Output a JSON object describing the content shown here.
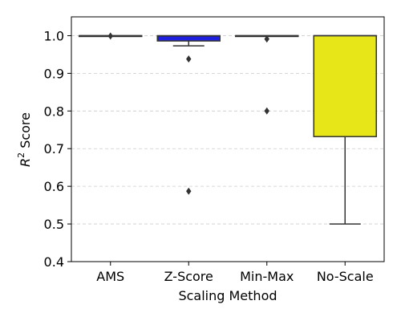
{
  "chart_data": {
    "type": "box",
    "title": "",
    "xlabel": "Scaling Method",
    "ylabel": "R² Score",
    "ylabel_base": "R",
    "ylabel_sup": "2",
    "ylabel_rest": " Score",
    "categories": [
      "AMS",
      "Z-Score",
      "Min-Max",
      "No-Scale"
    ],
    "ylim": [
      0.4,
      1.05
    ],
    "yticks": [
      0.4,
      0.5,
      0.6,
      0.7,
      0.8,
      0.9,
      1.0
    ],
    "ytick_labels": [
      "0.4",
      "0.5",
      "0.6",
      "0.7",
      "0.8",
      "0.9",
      "1.0"
    ],
    "grid": {
      "axis": "y",
      "style": "dashed"
    },
    "colors": {
      "AMS": "#ffffff",
      "Z-Score": "#1f1fe0",
      "Min-Max": "#ffffff",
      "No-Scale": "#e6e619"
    },
    "boxes": [
      {
        "category": "AMS",
        "whisker_low": 1.0,
        "q1": 1.0,
        "median": 1.0,
        "q3": 1.0,
        "whisker_high": 1.0,
        "outliers": [
          0.999
        ]
      },
      {
        "category": "Z-Score",
        "whisker_low": 0.973,
        "q1": 0.986,
        "median": 0.999,
        "q3": 1.0,
        "whisker_high": 1.0,
        "outliers": [
          0.938,
          0.587
        ]
      },
      {
        "category": "Min-Max",
        "whisker_low": 0.999,
        "q1": 0.999,
        "median": 1.0,
        "q3": 1.0,
        "whisker_high": 1.0,
        "outliers": [
          0.991,
          0.8
        ]
      },
      {
        "category": "No-Scale",
        "whisker_low": 0.5,
        "q1": 0.732,
        "median": 1.0,
        "q3": 1.0,
        "whisker_high": 1.0,
        "outliers": []
      }
    ]
  }
}
